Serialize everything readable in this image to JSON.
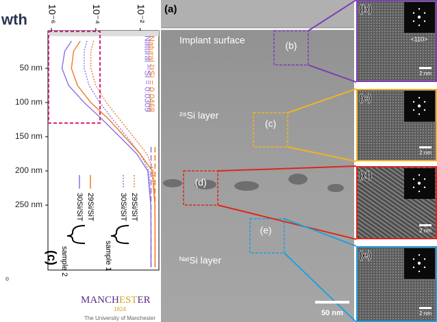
{
  "header": {
    "title_fragment": "wth"
  },
  "chart_data": {
    "type": "line",
    "panel_label": "(c)",
    "x": [
      10,
      25,
      50,
      75,
      100,
      125,
      150,
      175,
      200,
      250,
      300,
      340
    ],
    "xlim": [
      -5,
      345
    ],
    "xticks": [
      {
        "value": 50,
        "label": "50 nm"
      },
      {
        "value": 100,
        "label": "100 nm"
      },
      {
        "value": 150,
        "label": "150 nm"
      },
      {
        "value": 200,
        "label": "200 nm"
      },
      {
        "value": 250,
        "label": "250 nm"
      }
    ],
    "ylim": [
      7e-07,
      0.07
    ],
    "log_scale": true,
    "yticks": [
      {
        "value": 1e-06,
        "label": "10⁻⁶"
      },
      {
        "value": 0.0001,
        "label": "10⁻⁴"
      },
      {
        "value": 0.01,
        "label": "10⁻²"
      }
    ],
    "series": [
      {
        "name": "29Si/SiT",
        "group": "sample 1",
        "color": "#f07a20",
        "dash": "2,2",
        "values": [
          8e-05,
          6e-05,
          6e-05,
          0.0001,
          0.0003,
          0.0012,
          0.005,
          0.02,
          0.04,
          0.046,
          0.047,
          0.047
        ]
      },
      {
        "name": "30Si/SiT",
        "group": "sample 1",
        "color": "#8a6fe0",
        "dash": "2,2",
        "values": [
          4e-05,
          3e-05,
          3e-05,
          5e-05,
          0.00015,
          0.0006,
          0.0025,
          0.01,
          0.025,
          0.03,
          0.031,
          0.031
        ]
      },
      {
        "name": "29Si/SiT",
        "group": "sample 2",
        "color": "#f07a20",
        "dash": "",
        "values": [
          2e-05,
          1e-05,
          8e-06,
          1.5e-05,
          6e-05,
          0.0004,
          0.002,
          0.01,
          0.035,
          0.046,
          0.047,
          0.047
        ]
      },
      {
        "name": "30Si/SiT",
        "group": "sample 2",
        "color": "#8a6fe0",
        "dash": "",
        "values": [
          8e-06,
          4e-06,
          3e-06,
          6e-06,
          3e-05,
          0.0002,
          0.0012,
          0.007,
          0.022,
          0.03,
          0.031,
          0.031
        ]
      }
    ],
    "natural_lines": [
      {
        "label": "Natural ²⁹Si = 0.0468",
        "value": 0.0468,
        "color": "#f07a20"
      },
      {
        "label": "Natural ³⁰Si = 0.0309",
        "value": 0.0309,
        "color": "#8a6fe0"
      }
    ],
    "legend_groups": [
      "sample 1",
      "sample 2"
    ]
  },
  "footer": {
    "mark": "o",
    "logo_start": "MANCH",
    "logo_mid": "EST",
    "logo_end": "ER",
    "year": "1824",
    "university": "The University of Manchester"
  },
  "tem": {
    "panel": "(a)",
    "surface_label": "Implant surface",
    "layer_28": "²⁸Si layer",
    "layer_nat": "ᴺᵃᵗSi layer",
    "regions": [
      "(b)",
      "(c)",
      "(d)",
      "(e)"
    ],
    "scale_bar": "50 nm"
  },
  "insets": [
    {
      "label": "(b)",
      "zone": "<110>",
      "scale": "2 nm"
    },
    {
      "label": "(c)",
      "scale": "2 nm"
    },
    {
      "label": "(d)",
      "scale": "2 nm"
    },
    {
      "label": "(e)",
      "scale": "2 nm"
    }
  ]
}
